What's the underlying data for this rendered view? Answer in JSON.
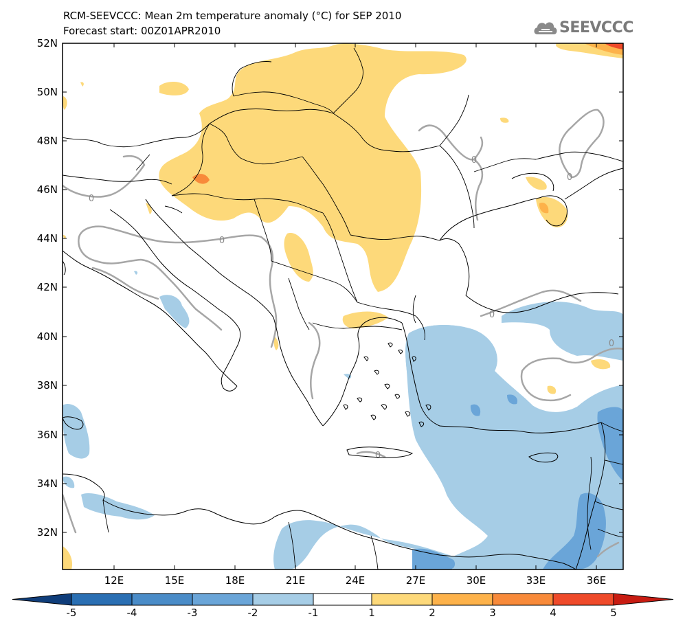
{
  "header": {
    "title": "RCM-SEEVCCC: Mean 2m temperature anomaly (°C) for SEP 2010",
    "subtitle": "Forecast start: 00Z01APR2010"
  },
  "logo": {
    "text": "SEEVCCC",
    "icon": "cloud-icon"
  },
  "map": {
    "lat_labels": [
      "52N",
      "50N",
      "48N",
      "46N",
      "44N",
      "42N",
      "40N",
      "38N",
      "36N",
      "34N",
      "32N"
    ],
    "lon_labels": [
      "12E",
      "15E",
      "18E",
      "21E",
      "24E",
      "27E",
      "30E",
      "33E",
      "36E"
    ],
    "contour_label": "0"
  },
  "colorbar": {
    "labels": [
      "-5",
      "-4",
      "-3",
      "-2",
      "-1",
      "1",
      "2",
      "3",
      "4",
      "5"
    ],
    "colors": [
      "#0f3d7a",
      "#2a6fb3",
      "#4a8cc8",
      "#6aa5d8",
      "#a6cde6",
      "#ffffff",
      "#fdd97a",
      "#fdb24a",
      "#f88a3a",
      "#ef4a2a",
      "#d62a1e",
      "#c81c12"
    ]
  },
  "colors": {
    "warm1": "#fdd97a",
    "warm2": "#fdb24a",
    "warm3": "#f88a3a",
    "cold1": "#a6cde6",
    "cold2": "#6aa5d8",
    "contour": "#a6a6a6"
  }
}
